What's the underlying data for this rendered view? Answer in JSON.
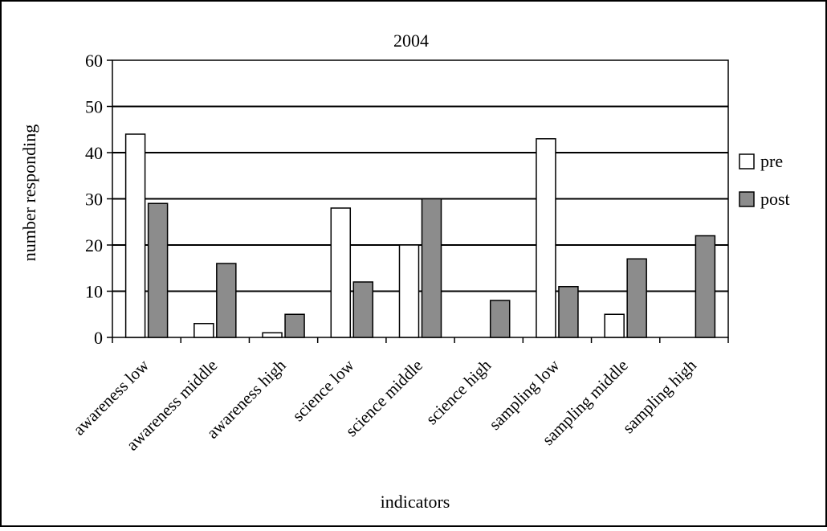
{
  "chart_data": {
    "type": "bar",
    "title": "2004",
    "xlabel": "indicators",
    "ylabel": "number responding",
    "categories": [
      "awareness low",
      "awareness middle",
      "awareness high",
      "science low",
      "science middle",
      "science high",
      "sampling low",
      "sampling middle",
      "sampling high"
    ],
    "series": [
      {
        "name": "pre",
        "values": [
          44,
          3,
          1,
          28,
          20,
          0,
          43,
          5,
          0
        ],
        "color": "#ffffff"
      },
      {
        "name": "post",
        "values": [
          29,
          16,
          5,
          12,
          30,
          8,
          11,
          17,
          22
        ],
        "color": "#8c8c8c"
      }
    ],
    "ylim": [
      0,
      60
    ],
    "yticks": [
      0,
      10,
      20,
      30,
      40,
      50,
      60
    ],
    "grid": true,
    "legend_position": "right"
  }
}
